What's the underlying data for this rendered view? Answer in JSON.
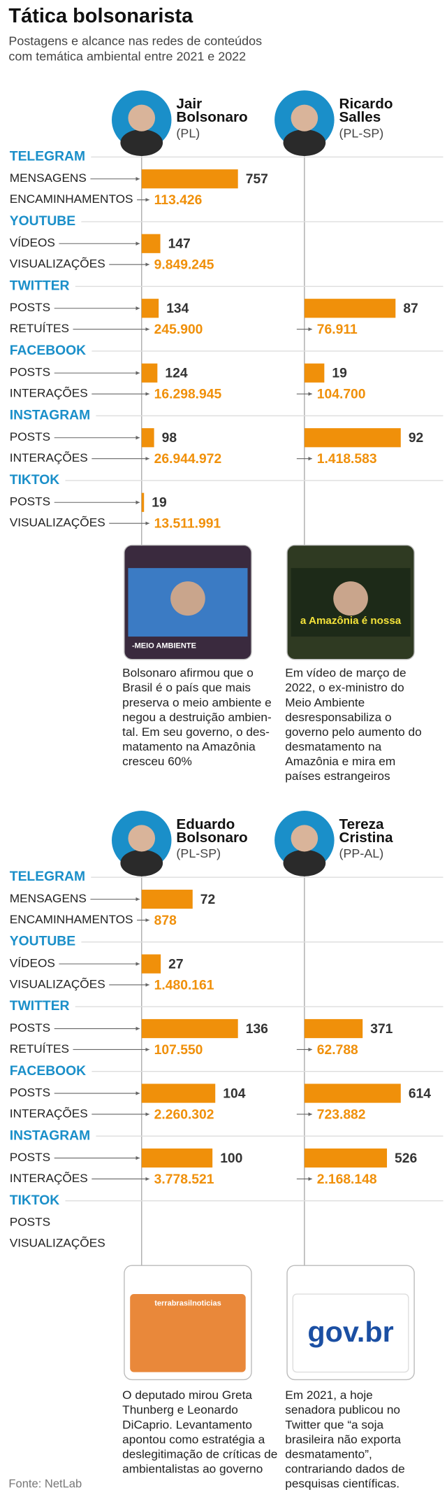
{
  "title": "Tática bolsonarista",
  "subtitle": [
    "Postagens e alcance nas redes de conteúdos",
    "com temática ambiental entre 2021 e 2022"
  ],
  "source": "Fonte: NetLab",
  "panels": [
    {
      "people": [
        {
          "name": [
            "Jair",
            "Bolsonaro"
          ],
          "party": "(PL)",
          "thumb_text": "-MEIO AMBIENTE",
          "caption": [
            "Bolsonaro afirmou que o",
            "Brasil é o país que mais",
            "preserva o meio ambiente e",
            "negou a destruição ambien-",
            "tal. Em seu governo, o des-",
            "matamento na Amazônia",
            "cresceu 60%"
          ],
          "stats": [
            {
              "count": 757,
              "reach": "113.426"
            },
            {
              "count": 147,
              "reach": "9.849.245"
            },
            {
              "count": 134,
              "reach": "245.900"
            },
            {
              "count": 124,
              "reach": "16.298.945"
            },
            {
              "count": 98,
              "reach": "26.944.972"
            },
            {
              "count": 19,
              "reach": "13.511.991"
            }
          ]
        },
        {
          "name": [
            "Ricardo",
            "Salles"
          ],
          "party": "(PL-SP)",
          "thumb_text": "a Amazônia é nossa",
          "caption": [
            "Em vídeo de março de",
            "2022, o ex-ministro do",
            "Meio Ambiente",
            "desresponsabiliza o",
            "governo pelo aumento do",
            "desmatamento na",
            "Amazônia e mira em",
            "países estrangeiros"
          ],
          "stats": [
            null,
            null,
            {
              "count": 87,
              "reach": "76.911"
            },
            {
              "count": 19,
              "reach": "104.700"
            },
            {
              "count": 92,
              "reach": "1.418.583"
            },
            null
          ]
        }
      ],
      "platforms": [
        {
          "name": "TELEGRAM",
          "metrics": [
            "MENSAGENS",
            "ENCAMINHAMENTOS"
          ]
        },
        {
          "name": "YOUTUBE",
          "metrics": [
            "VÍDEOS",
            "VISUALIZAÇÕES"
          ]
        },
        {
          "name": "TWITTER",
          "metrics": [
            "POSTS",
            "RETUÍTES"
          ]
        },
        {
          "name": "FACEBOOK",
          "metrics": [
            "POSTS",
            "INTERAÇÕES"
          ]
        },
        {
          "name": "INSTAGRAM",
          "metrics": [
            "POSTS",
            "INTERAÇÕES"
          ]
        },
        {
          "name": "TIKTOK",
          "metrics": [
            "POSTS",
            "VISUALIZAÇÕES"
          ]
        }
      ]
    },
    {
      "people": [
        {
          "name": [
            "Eduardo",
            "Bolsonaro"
          ],
          "party": "(PL-SP)",
          "thumb_text": "terrabrasilnoticias",
          "caption": [
            "O deputado mirou Greta",
            "Thunberg e Leonardo",
            "DiCaprio. Levantamento",
            "apontou como estratégia a",
            "deslegitimação de críticas de",
            "ambientalistas ao governo"
          ],
          "stats": [
            {
              "count": 72,
              "reach": "878"
            },
            {
              "count": 27,
              "reach": "1.480.161"
            },
            {
              "count": 136,
              "reach": "107.550"
            },
            {
              "count": 104,
              "reach": "2.260.302"
            },
            {
              "count": 100,
              "reach": "3.778.521"
            },
            null
          ]
        },
        {
          "name": [
            "Tereza",
            "Cristina"
          ],
          "party": "(PP-AL)",
          "thumb_text": "gov.br",
          "caption": [
            "Em 2021, a hoje",
            "senadora publicou no",
            "Twitter que “a soja",
            "brasileira não exporta",
            "desmatamento”,",
            "contrariando dados de",
            "pesquisas científicas."
          ],
          "stats": [
            null,
            null,
            {
              "count": 371,
              "reach": "62.788"
            },
            {
              "count": 614,
              "reach": "723.882"
            },
            {
              "count": 526,
              "reach": "2.168.148"
            },
            null
          ]
        }
      ],
      "platforms": [
        {
          "name": "TELEGRAM",
          "metrics": [
            "MENSAGENS",
            "ENCAMINHAMENTOS"
          ]
        },
        {
          "name": "YOUTUBE",
          "metrics": [
            "VÍDEOS",
            "VISUALIZAÇÕES"
          ]
        },
        {
          "name": "TWITTER",
          "metrics": [
            "POSTS",
            "RETUÍTES"
          ]
        },
        {
          "name": "FACEBOOK",
          "metrics": [
            "POSTS",
            "INTERAÇÕES"
          ]
        },
        {
          "name": "INSTAGRAM",
          "metrics": [
            "POSTS",
            "INTERAÇÕES"
          ]
        },
        {
          "name": "TIKTOK",
          "metrics": [
            "POSTS",
            "VISUALIZAÇÕES"
          ]
        }
      ]
    }
  ]
}
